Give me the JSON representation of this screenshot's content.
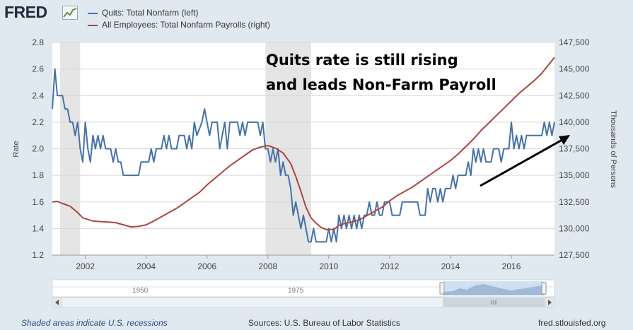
{
  "header": {
    "logo_text": "FRED",
    "logo_icon": "chart-trend-icon"
  },
  "annotation": {
    "line1": "Quits rate is still rising",
    "line2": "and leads Non-Farm Payroll"
  },
  "navigator": {
    "labels": [
      "1950",
      "1975"
    ]
  },
  "footer": {
    "recession_note": "Shaded areas indicate U.S. recessions",
    "sources": "Sources: U.S. Bureau of Labor Statistics",
    "site": "fred.stlouisfed.org"
  },
  "chart_data": {
    "type": "line",
    "ylabel_left": "Rate",
    "ylabel_right": "Thousands of Persons",
    "x_ticks": [
      "2002",
      "2004",
      "2006",
      "2008",
      "2010",
      "2012",
      "2014",
      "2016"
    ],
    "x_range": [
      2000.917,
      2017.417
    ],
    "ylim_left": [
      1.2,
      2.8
    ],
    "yticks_left": [
      "1.2",
      "1.4",
      "1.6",
      "1.8",
      "2.0",
      "2.2",
      "2.4",
      "2.6",
      "2.8"
    ],
    "ylim_right": [
      127500,
      147500
    ],
    "yticks_right": [
      "127,500",
      "130,000",
      "132,500",
      "135,000",
      "137,500",
      "140,000",
      "142,500",
      "145,000",
      "147,500"
    ],
    "grid": true,
    "legend_position": "top-left",
    "recessions": [
      [
        2001.17,
        2001.83
      ],
      [
        2007.92,
        2009.42
      ]
    ],
    "series": [
      {
        "name": "Quits: Total Nonfarm (left)",
        "axis": "left",
        "color": "#4572a7",
        "points": [
          [
            2000.917,
            2.3
          ],
          [
            2001.0,
            2.6
          ],
          [
            2001.083,
            2.4
          ],
          [
            2001.25,
            2.4
          ],
          [
            2001.333,
            2.3
          ],
          [
            2001.417,
            2.3
          ],
          [
            2001.5,
            2.2
          ],
          [
            2001.583,
            2.2
          ],
          [
            2001.667,
            2.1
          ],
          [
            2001.75,
            2.2
          ],
          [
            2001.833,
            2.0
          ],
          [
            2001.917,
            1.9
          ],
          [
            2002.0,
            2.2
          ],
          [
            2002.083,
            2.0
          ],
          [
            2002.167,
            1.9
          ],
          [
            2002.25,
            2.1
          ],
          [
            2002.333,
            2.0
          ],
          [
            2002.417,
            2.1
          ],
          [
            2002.5,
            2.0
          ],
          [
            2002.583,
            2.1
          ],
          [
            2002.667,
            2.0
          ],
          [
            2002.833,
            2.0
          ],
          [
            2002.917,
            1.9
          ],
          [
            2003.0,
            2.0
          ],
          [
            2003.083,
            1.9
          ],
          [
            2003.167,
            1.9
          ],
          [
            2003.25,
            1.8
          ],
          [
            2003.75,
            1.8
          ],
          [
            2003.833,
            1.9
          ],
          [
            2004.083,
            1.9
          ],
          [
            2004.167,
            2.0
          ],
          [
            2004.25,
            1.9
          ],
          [
            2004.333,
            2.0
          ],
          [
            2004.5,
            2.0
          ],
          [
            2004.583,
            2.1
          ],
          [
            2004.667,
            2.0
          ],
          [
            2004.75,
            2.1
          ],
          [
            2004.833,
            2.0
          ],
          [
            2005.0,
            2.0
          ],
          [
            2005.083,
            2.1
          ],
          [
            2005.25,
            2.1
          ],
          [
            2005.333,
            2.0
          ],
          [
            2005.417,
            2.1
          ],
          [
            2005.5,
            2.0
          ],
          [
            2005.583,
            2.2
          ],
          [
            2005.667,
            2.1
          ],
          [
            2005.833,
            2.2
          ],
          [
            2005.917,
            2.3
          ],
          [
            2006.0,
            2.2
          ],
          [
            2006.083,
            2.1
          ],
          [
            2006.167,
            2.2
          ],
          [
            2006.333,
            2.2
          ],
          [
            2006.417,
            2.0
          ],
          [
            2006.5,
            2.1
          ],
          [
            2006.583,
            2.2
          ],
          [
            2006.667,
            2.0
          ],
          [
            2006.75,
            2.2
          ],
          [
            2007.0,
            2.2
          ],
          [
            2007.083,
            2.1
          ],
          [
            2007.167,
            2.2
          ],
          [
            2007.25,
            2.1
          ],
          [
            2007.333,
            2.2
          ],
          [
            2007.667,
            2.2
          ],
          [
            2007.75,
            2.1
          ],
          [
            2007.833,
            2.2
          ],
          [
            2007.917,
            2.0
          ],
          [
            2008.0,
            2.0
          ],
          [
            2008.083,
            1.9
          ],
          [
            2008.167,
            2.0
          ],
          [
            2008.25,
            1.9
          ],
          [
            2008.333,
            2.0
          ],
          [
            2008.417,
            1.8
          ],
          [
            2008.5,
            1.9
          ],
          [
            2008.583,
            1.8
          ],
          [
            2008.667,
            1.8
          ],
          [
            2008.75,
            1.7
          ],
          [
            2008.833,
            1.5
          ],
          [
            2008.917,
            1.6
          ],
          [
            2009.0,
            1.5
          ],
          [
            2009.083,
            1.4
          ],
          [
            2009.167,
            1.5
          ],
          [
            2009.25,
            1.4
          ],
          [
            2009.333,
            1.3
          ],
          [
            2009.417,
            1.3
          ],
          [
            2009.5,
            1.4
          ],
          [
            2009.583,
            1.3
          ],
          [
            2009.917,
            1.3
          ],
          [
            2010.0,
            1.4
          ],
          [
            2010.083,
            1.3
          ],
          [
            2010.167,
            1.4
          ],
          [
            2010.25,
            1.3
          ],
          [
            2010.333,
            1.5
          ],
          [
            2010.417,
            1.4
          ],
          [
            2010.5,
            1.5
          ],
          [
            2010.583,
            1.4
          ],
          [
            2010.667,
            1.5
          ],
          [
            2010.75,
            1.4
          ],
          [
            2010.833,
            1.5
          ],
          [
            2010.917,
            1.4
          ],
          [
            2011.0,
            1.5
          ],
          [
            2011.083,
            1.4
          ],
          [
            2011.167,
            1.5
          ],
          [
            2011.25,
            1.5
          ],
          [
            2011.333,
            1.6
          ],
          [
            2011.417,
            1.5
          ],
          [
            2011.5,
            1.5
          ],
          [
            2011.583,
            1.6
          ],
          [
            2011.667,
            1.5
          ],
          [
            2011.75,
            1.5
          ],
          [
            2011.833,
            1.6
          ],
          [
            2012.0,
            1.6
          ],
          [
            2012.083,
            1.5
          ],
          [
            2012.333,
            1.5
          ],
          [
            2012.417,
            1.6
          ],
          [
            2012.917,
            1.6
          ],
          [
            2013.0,
            1.5
          ],
          [
            2013.167,
            1.5
          ],
          [
            2013.25,
            1.7
          ],
          [
            2013.333,
            1.6
          ],
          [
            2013.417,
            1.7
          ],
          [
            2013.5,
            1.7
          ],
          [
            2013.583,
            1.6
          ],
          [
            2013.667,
            1.7
          ],
          [
            2013.75,
            1.6
          ],
          [
            2013.833,
            1.7
          ],
          [
            2014.0,
            1.7
          ],
          [
            2014.083,
            1.8
          ],
          [
            2014.167,
            1.7
          ],
          [
            2014.25,
            1.8
          ],
          [
            2014.5,
            1.8
          ],
          [
            2014.583,
            1.9
          ],
          [
            2014.667,
            1.8
          ],
          [
            2014.75,
            2.0
          ],
          [
            2014.833,
            1.9
          ],
          [
            2014.917,
            2.0
          ],
          [
            2015.0,
            1.9
          ],
          [
            2015.083,
            2.0
          ],
          [
            2015.167,
            1.9
          ],
          [
            2015.333,
            1.9
          ],
          [
            2015.417,
            2.0
          ],
          [
            2015.583,
            2.0
          ],
          [
            2015.667,
            1.9
          ],
          [
            2015.75,
            2.0
          ],
          [
            2015.917,
            2.0
          ],
          [
            2016.0,
            2.2
          ],
          [
            2016.083,
            2.0
          ],
          [
            2016.167,
            2.1
          ],
          [
            2016.25,
            2.0
          ],
          [
            2016.333,
            2.1
          ],
          [
            2016.417,
            2.0
          ],
          [
            2016.5,
            2.1
          ],
          [
            2017.0,
            2.1
          ],
          [
            2017.083,
            2.2
          ],
          [
            2017.167,
            2.1
          ],
          [
            2017.25,
            2.2
          ],
          [
            2017.333,
            2.1
          ],
          [
            2017.417,
            2.2
          ]
        ]
      },
      {
        "name": "All Employees: Total Nonfarm Payrolls (right)",
        "axis": "right",
        "color": "#aa4643",
        "points": [
          [
            2000.917,
            132500
          ],
          [
            2001.083,
            132550
          ],
          [
            2001.25,
            132350
          ],
          [
            2001.5,
            132100
          ],
          [
            2001.75,
            131500
          ],
          [
            2001.917,
            131000
          ],
          [
            2002.25,
            130700
          ],
          [
            2002.5,
            130650
          ],
          [
            2002.75,
            130600
          ],
          [
            2003.0,
            130550
          ],
          [
            2003.25,
            130350
          ],
          [
            2003.5,
            130150
          ],
          [
            2003.75,
            130200
          ],
          [
            2004.0,
            130350
          ],
          [
            2004.25,
            130700
          ],
          [
            2004.5,
            131100
          ],
          [
            2004.75,
            131500
          ],
          [
            2005.0,
            131900
          ],
          [
            2005.25,
            132400
          ],
          [
            2005.5,
            132900
          ],
          [
            2005.75,
            133400
          ],
          [
            2006.0,
            134100
          ],
          [
            2006.25,
            134700
          ],
          [
            2006.5,
            135300
          ],
          [
            2006.75,
            135900
          ],
          [
            2007.0,
            136400
          ],
          [
            2007.25,
            136900
          ],
          [
            2007.5,
            137400
          ],
          [
            2007.75,
            137650
          ],
          [
            2008.0,
            137800
          ],
          [
            2008.25,
            137550
          ],
          [
            2008.5,
            137100
          ],
          [
            2008.75,
            136100
          ],
          [
            2008.917,
            134900
          ],
          [
            2009.083,
            133500
          ],
          [
            2009.25,
            132000
          ],
          [
            2009.417,
            131000
          ],
          [
            2009.583,
            130500
          ],
          [
            2009.75,
            130100
          ],
          [
            2009.917,
            129900
          ],
          [
            2010.167,
            129900
          ],
          [
            2010.333,
            130300
          ],
          [
            2010.5,
            130450
          ],
          [
            2010.75,
            130600
          ],
          [
            2011.0,
            130800
          ],
          [
            2011.25,
            131200
          ],
          [
            2011.5,
            131600
          ],
          [
            2011.75,
            132000
          ],
          [
            2012.0,
            132600
          ],
          [
            2012.25,
            133100
          ],
          [
            2012.5,
            133500
          ],
          [
            2012.75,
            133900
          ],
          [
            2013.0,
            134400
          ],
          [
            2013.25,
            134900
          ],
          [
            2013.5,
            135400
          ],
          [
            2013.75,
            135900
          ],
          [
            2014.0,
            136400
          ],
          [
            2014.25,
            137000
          ],
          [
            2014.5,
            137700
          ],
          [
            2014.75,
            138400
          ],
          [
            2015.0,
            139200
          ],
          [
            2015.25,
            139900
          ],
          [
            2015.5,
            140600
          ],
          [
            2015.75,
            141300
          ],
          [
            2016.0,
            142000
          ],
          [
            2016.25,
            142700
          ],
          [
            2016.5,
            143300
          ],
          [
            2016.75,
            143900
          ],
          [
            2017.0,
            144600
          ],
          [
            2017.25,
            145500
          ],
          [
            2017.417,
            146100
          ]
        ]
      }
    ]
  }
}
